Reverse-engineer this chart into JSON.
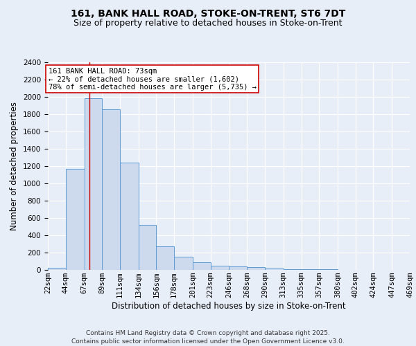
{
  "title": "161, BANK HALL ROAD, STOKE-ON-TRENT, ST6 7DT",
  "subtitle": "Size of property relative to detached houses in Stoke-on-Trent",
  "xlabel": "Distribution of detached houses by size in Stoke-on-Trent",
  "ylabel": "Number of detached properties",
  "bar_edge_color": "#5b9bd5",
  "bar_face_color": "#cdd9ed",
  "background_color": "#e8eef8",
  "grid_color": "#ffffff",
  "ylim": [
    0,
    2400
  ],
  "bin_edges": [
    22,
    44,
    67,
    89,
    111,
    134,
    156,
    178,
    201,
    223,
    246,
    268,
    290,
    313,
    335,
    357,
    380,
    402,
    424,
    447,
    469
  ],
  "bar_heights": [
    25,
    1165,
    1985,
    1855,
    1240,
    520,
    270,
    150,
    90,
    45,
    40,
    35,
    20,
    10,
    5,
    5,
    3,
    2,
    1,
    1
  ],
  "property_size": 73,
  "annotation_text": "161 BANK HALL ROAD: 73sqm\n← 22% of detached houses are smaller (1,602)\n78% of semi-detached houses are larger (5,735) →",
  "footer_line1": "Contains HM Land Registry data © Crown copyright and database right 2025.",
  "footer_line2": "Contains public sector information licensed under the Open Government Licence v3.0.",
  "red_line_color": "#cc0000",
  "annotation_box_color": "#ffffff",
  "annotation_box_edge": "#cc0000",
  "title_fontsize": 10,
  "subtitle_fontsize": 9,
  "axis_label_fontsize": 8.5,
  "tick_fontsize": 7.5,
  "annotation_fontsize": 7.5,
  "footer_fontsize": 6.5
}
